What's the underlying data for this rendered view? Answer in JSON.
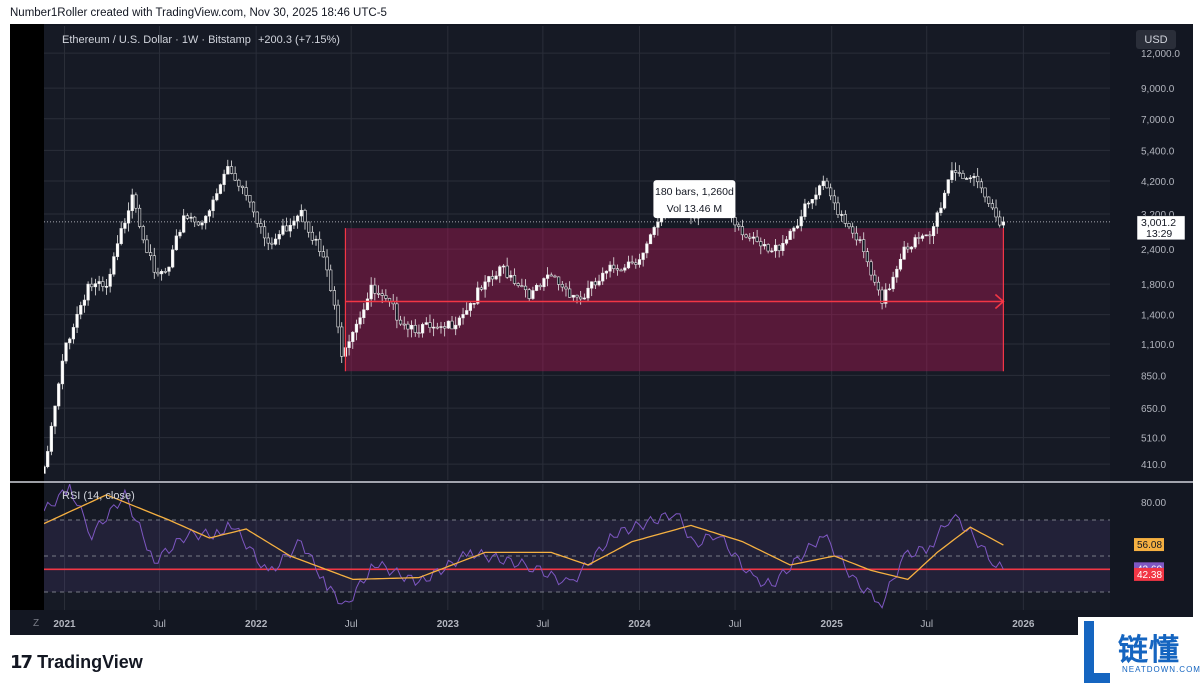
{
  "header": {
    "caption": "Number1Roller created with TradingView.com, Nov 30, 2025 18:46 UTC-5"
  },
  "footer": {
    "brand_name": "TradingView",
    "brand_mark": "17"
  },
  "watermark": {
    "cn_text": "链懂",
    "en_text": "NEATDOWN.COM"
  },
  "chart_data": [
    {
      "type": "candlestick",
      "title": "Ethereum / U.S. Dollar · 1W · Bitstamp",
      "change_text": "+200.3 (+7.15%)",
      "currency": "USD",
      "scale": "log",
      "ylim": [
        360,
        15000
      ],
      "y_ticks": [
        12000,
        9000,
        7000,
        5400,
        4200,
        3200,
        2400,
        1800,
        1400,
        1100,
        850,
        650,
        510,
        410
      ],
      "y_tick_labels": [
        "12,000.0",
        "9,000.0",
        "7,000.0",
        "5,400.0",
        "4,200.0",
        "3,200.0",
        "2,400.0",
        "1,800.0",
        "1,400.0",
        "1,100.0",
        "850.0",
        "650.0",
        "510.0",
        "410.0"
      ],
      "x_range": [
        "2020-11-23",
        "2026-06-15"
      ],
      "x_ticks": [
        {
          "label": "2021",
          "date": "2021-01-01",
          "major": true
        },
        {
          "label": "Jul",
          "date": "2021-07-01",
          "major": false
        },
        {
          "label": "2022",
          "date": "2022-01-01",
          "major": true
        },
        {
          "label": "Jul",
          "date": "2022-07-01",
          "major": false
        },
        {
          "label": "2023",
          "date": "2023-01-01",
          "major": true
        },
        {
          "label": "Jul",
          "date": "2023-07-01",
          "major": false
        },
        {
          "label": "2024",
          "date": "2024-01-01",
          "major": true
        },
        {
          "label": "Jul",
          "date": "2024-07-01",
          "major": false
        },
        {
          "label": "2025",
          "date": "2025-01-01",
          "major": true
        },
        {
          "label": "Jul",
          "date": "2025-07-01",
          "major": false
        },
        {
          "label": "2026",
          "date": "2026-01-01",
          "major": true
        }
      ],
      "bullish_color": "#ffffff",
      "bearish_color": "#ffffff",
      "price_path": [
        {
          "date": "2020-11-23",
          "close": 380
        },
        {
          "date": "2021-01-04",
          "close": 1100
        },
        {
          "date": "2021-02-15",
          "close": 1800
        },
        {
          "date": "2021-03-22",
          "close": 1700
        },
        {
          "date": "2021-05-10",
          "close": 3900
        },
        {
          "date": "2021-06-21",
          "close": 1900
        },
        {
          "date": "2021-07-19",
          "close": 2000
        },
        {
          "date": "2021-08-16",
          "close": 3200
        },
        {
          "date": "2021-09-27",
          "close": 3000
        },
        {
          "date": "2021-11-08",
          "close": 4700
        },
        {
          "date": "2021-12-20",
          "close": 3700
        },
        {
          "date": "2022-01-24",
          "close": 2400
        },
        {
          "date": "2022-03-28",
          "close": 3400
        },
        {
          "date": "2022-05-16",
          "close": 2000
        },
        {
          "date": "2022-06-13",
          "close": 1050
        },
        {
          "date": "2022-08-08",
          "close": 1700
        },
        {
          "date": "2022-10-17",
          "close": 1300
        },
        {
          "date": "2022-12-19",
          "close": 1200
        },
        {
          "date": "2023-04-17",
          "close": 2050
        },
        {
          "date": "2023-06-12",
          "close": 1650
        },
        {
          "date": "2023-07-17",
          "close": 1900
        },
        {
          "date": "2023-09-11",
          "close": 1600
        },
        {
          "date": "2023-11-13",
          "close": 2050
        },
        {
          "date": "2024-01-08",
          "close": 2300
        },
        {
          "date": "2024-03-11",
          "close": 3900
        },
        {
          "date": "2024-04-15",
          "close": 3100
        },
        {
          "date": "2024-05-27",
          "close": 3800
        },
        {
          "date": "2024-08-05",
          "close": 2500
        },
        {
          "date": "2024-09-09",
          "close": 2300
        },
        {
          "date": "2024-12-16",
          "close": 4000
        },
        {
          "date": "2025-02-17",
          "close": 2700
        },
        {
          "date": "2025-04-07",
          "close": 1500
        },
        {
          "date": "2025-05-19",
          "close": 2500
        },
        {
          "date": "2025-07-07",
          "close": 2600
        },
        {
          "date": "2025-08-18",
          "close": 4700
        },
        {
          "date": "2025-09-22",
          "close": 4300
        },
        {
          "date": "2025-11-03",
          "close": 3300
        },
        {
          "date": "2025-11-24",
          "close": 3001.2
        }
      ],
      "last_price_label": "3,001.2",
      "last_price": 3001.2,
      "countdown_label": "13:29",
      "range_box": {
        "date_from": "2022-06-20",
        "date_to": "2025-11-24",
        "price_high": 2850,
        "price_low": 880,
        "mid_price": 1560,
        "color": "#c2185b",
        "bars_label": "180 bars, 1,260d",
        "vol_label": "Vol 13.46 M"
      }
    },
    {
      "type": "line",
      "title": "RSI (14, close)",
      "ylim": [
        20,
        90
      ],
      "y_ticks": [
        80
      ],
      "y_tick_labels": [
        "80.00"
      ],
      "levels": [
        70,
        50,
        30
      ],
      "band": [
        30,
        70
      ],
      "horizontal_line": 42.6,
      "series": [
        {
          "name": "RSI",
          "color": "#7e57c2",
          "points": [
            {
              "date": "2020-11-23",
              "value": 75
            },
            {
              "date": "2021-01-11",
              "value": 88
            },
            {
              "date": "2021-02-22",
              "value": 62
            },
            {
              "date": "2021-04-26",
              "value": 84
            },
            {
              "date": "2021-06-21",
              "value": 47
            },
            {
              "date": "2021-08-23",
              "value": 62
            },
            {
              "date": "2021-10-18",
              "value": 62
            },
            {
              "date": "2021-11-15",
              "value": 68
            },
            {
              "date": "2022-01-24",
              "value": 40
            },
            {
              "date": "2022-03-28",
              "value": 58
            },
            {
              "date": "2022-05-16",
              "value": 33
            },
            {
              "date": "2022-06-20",
              "value": 22
            },
            {
              "date": "2022-08-15",
              "value": 46
            },
            {
              "date": "2022-11-07",
              "value": 35
            },
            {
              "date": "2023-02-13",
              "value": 52
            },
            {
              "date": "2023-06-12",
              "value": 44
            },
            {
              "date": "2023-08-21",
              "value": 34
            },
            {
              "date": "2023-11-13",
              "value": 62
            },
            {
              "date": "2024-03-11",
              "value": 74
            },
            {
              "date": "2024-04-15",
              "value": 56
            },
            {
              "date": "2024-05-27",
              "value": 63
            },
            {
              "date": "2024-08-05",
              "value": 37
            },
            {
              "date": "2024-09-09",
              "value": 34
            },
            {
              "date": "2024-12-16",
              "value": 62
            },
            {
              "date": "2025-02-17",
              "value": 35
            },
            {
              "date": "2025-04-07",
              "value": 24
            },
            {
              "date": "2025-05-19",
              "value": 50
            },
            {
              "date": "2025-07-07",
              "value": 55
            },
            {
              "date": "2025-08-18",
              "value": 73
            },
            {
              "date": "2025-09-22",
              "value": 63
            },
            {
              "date": "2025-11-03",
              "value": 47
            },
            {
              "date": "2025-11-24",
              "value": 42.6
            }
          ]
        },
        {
          "name": "RSI-based MA",
          "color": "#f5b041",
          "points": [
            {
              "date": "2020-11-23",
              "value": 68
            },
            {
              "date": "2021-03-22",
              "value": 84
            },
            {
              "date": "2021-07-19",
              "value": 70
            },
            {
              "date": "2021-10-04",
              "value": 60
            },
            {
              "date": "2021-12-13",
              "value": 65
            },
            {
              "date": "2022-03-07",
              "value": 50
            },
            {
              "date": "2022-07-04",
              "value": 37
            },
            {
              "date": "2022-11-07",
              "value": 38
            },
            {
              "date": "2023-03-13",
              "value": 52
            },
            {
              "date": "2023-07-17",
              "value": 52
            },
            {
              "date": "2023-09-25",
              "value": 45
            },
            {
              "date": "2023-12-18",
              "value": 58
            },
            {
              "date": "2024-04-08",
              "value": 67
            },
            {
              "date": "2024-07-15",
              "value": 58
            },
            {
              "date": "2024-10-14",
              "value": 45
            },
            {
              "date": "2025-01-06",
              "value": 50
            },
            {
              "date": "2025-03-17",
              "value": 42
            },
            {
              "date": "2025-05-26",
              "value": 37
            },
            {
              "date": "2025-07-21",
              "value": 52
            },
            {
              "date": "2025-09-22",
              "value": 66
            },
            {
              "date": "2025-11-24",
              "value": 56.08
            }
          ]
        }
      ],
      "value_labels": [
        {
          "text": "56.08",
          "color": "#f5b041"
        },
        {
          "text": "42.60",
          "color": "#7e57c2"
        },
        {
          "text": "42.38",
          "color": "#f23645"
        }
      ]
    }
  ]
}
